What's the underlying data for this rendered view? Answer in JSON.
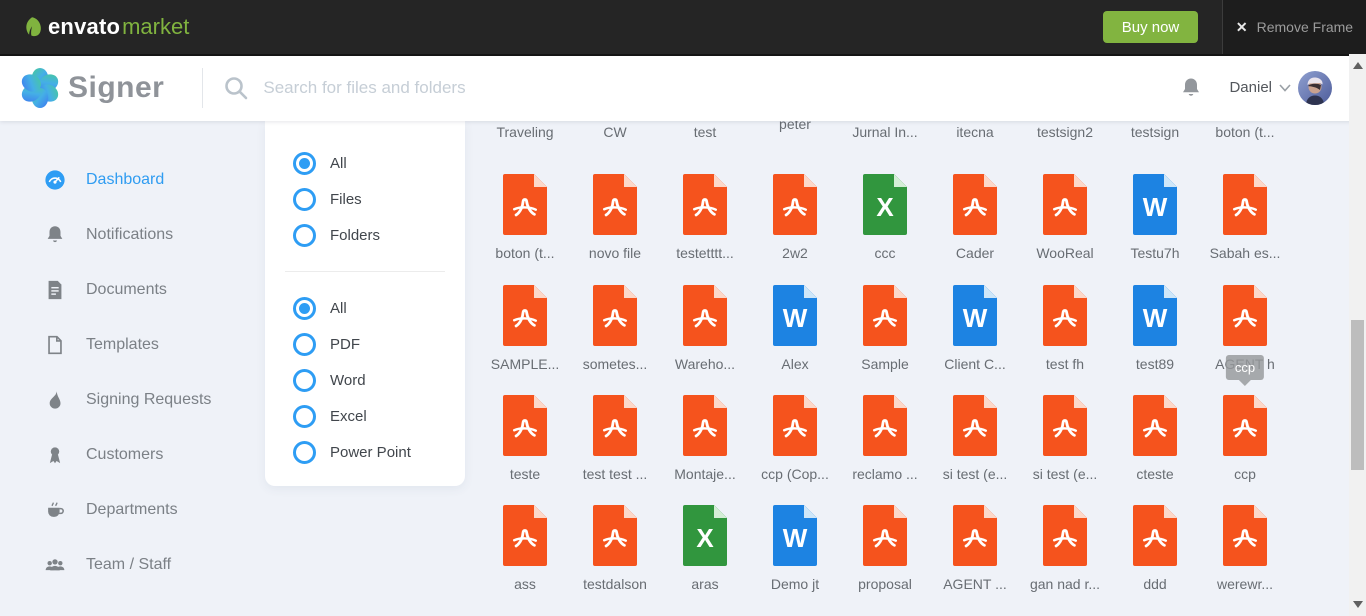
{
  "topbar": {
    "brand_envato": "envato",
    "brand_market": "market",
    "buy_now_label": "Buy now",
    "remove_frame_label": "Remove Frame"
  },
  "header": {
    "app_name": "Signer",
    "search_placeholder": "Search for files and folders",
    "user_name": "Daniel"
  },
  "sidebar": {
    "items": [
      {
        "label": "Dashboard",
        "icon": "dashboard-gauge-icon",
        "active": true
      },
      {
        "label": "Notifications",
        "icon": "bell-icon",
        "active": false
      },
      {
        "label": "Documents",
        "icon": "document-icon",
        "active": false
      },
      {
        "label": "Templates",
        "icon": "template-file-icon",
        "active": false
      },
      {
        "label": "Signing Requests",
        "icon": "signing-drop-icon",
        "active": false
      },
      {
        "label": "Customers",
        "icon": "customers-medal-icon",
        "active": false
      },
      {
        "label": "Departments",
        "icon": "departments-cup-icon",
        "active": false
      },
      {
        "label": "Team / Staff",
        "icon": "team-people-icon",
        "active": false
      }
    ]
  },
  "filters": {
    "type_group": {
      "options": [
        "All",
        "Files",
        "Folders"
      ],
      "selected": "All"
    },
    "format_group": {
      "options": [
        "All",
        "PDF",
        "Word",
        "Excel",
        "Power Point"
      ],
      "selected": "All"
    }
  },
  "files": {
    "partial_row_labels": [
      "Traveling",
      "CW",
      "test",
      "peter",
      "Jurnal In...",
      "itecna",
      "testsign2",
      "testsign",
      "boton (t..."
    ],
    "raised_label": "peter",
    "rows": [
      [
        {
          "name": "boton (t...",
          "type": "pdf"
        },
        {
          "name": "novo file",
          "type": "pdf"
        },
        {
          "name": "testetttt...",
          "type": "pdf"
        },
        {
          "name": "2w2",
          "type": "pdf"
        },
        {
          "name": "ccc",
          "type": "excel"
        },
        {
          "name": "Cader",
          "type": "pdf"
        },
        {
          "name": "WooReal",
          "type": "pdf"
        },
        {
          "name": "Testu7h",
          "type": "word"
        },
        {
          "name": "Sabah es...",
          "type": "pdf"
        }
      ],
      [
        {
          "name": "SAMPLE...",
          "type": "pdf"
        },
        {
          "name": "sometes...",
          "type": "pdf"
        },
        {
          "name": "Wareho...",
          "type": "pdf"
        },
        {
          "name": "Alex",
          "type": "word"
        },
        {
          "name": "Sample",
          "type": "pdf"
        },
        {
          "name": "Client C...",
          "type": "word"
        },
        {
          "name": "test fh",
          "type": "pdf"
        },
        {
          "name": "test89",
          "type": "word"
        },
        {
          "name": "AGENT h",
          "type": "pdf"
        }
      ],
      [
        {
          "name": "teste",
          "type": "pdf"
        },
        {
          "name": "test test ...",
          "type": "pdf"
        },
        {
          "name": "Montaje...",
          "type": "pdf"
        },
        {
          "name": "ccp (Cop...",
          "type": "pdf"
        },
        {
          "name": "reclamo ...",
          "type": "pdf"
        },
        {
          "name": "si test (e...",
          "type": "pdf"
        },
        {
          "name": "si test (e...",
          "type": "pdf"
        },
        {
          "name": "cteste",
          "type": "pdf"
        },
        {
          "name": "ccp",
          "type": "pdf"
        }
      ],
      [
        {
          "name": "ass",
          "type": "pdf"
        },
        {
          "name": "testdalson",
          "type": "pdf"
        },
        {
          "name": "aras",
          "type": "excel"
        },
        {
          "name": "Demo jt",
          "type": "word"
        },
        {
          "name": "proposal",
          "type": "pdf"
        },
        {
          "name": "AGENT ...",
          "type": "pdf"
        },
        {
          "name": "gan nad r...",
          "type": "pdf"
        },
        {
          "name": "ddd",
          "type": "pdf"
        },
        {
          "name": "werewr...",
          "type": "pdf"
        }
      ]
    ],
    "type_glyphs": {
      "word": "W",
      "excel": "X"
    },
    "tooltip": {
      "text": "ccp",
      "row_index": 2,
      "col_index": 8
    }
  },
  "colors": {
    "accent_blue": "#2e9df4",
    "envato_green": "#80b33f",
    "pdf": "#f5531d",
    "pdf_fold": "#fcd8c9",
    "word": "#1d83e2",
    "word_fold": "#cfe7f9",
    "excel": "#31963e",
    "excel_fold": "#d4eed6"
  }
}
